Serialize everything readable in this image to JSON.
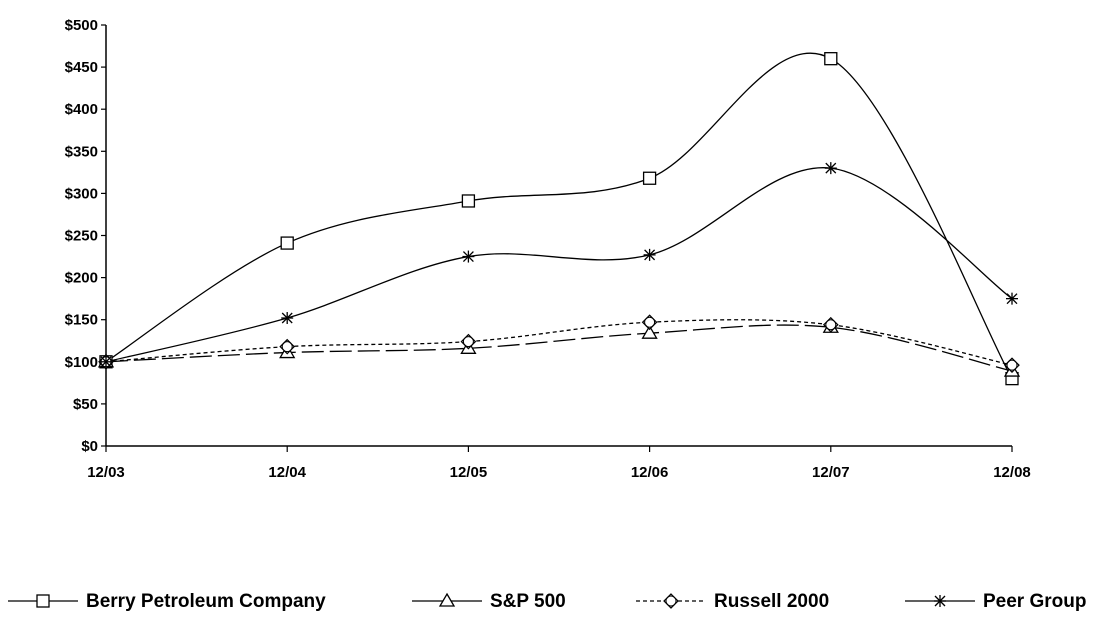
{
  "chart_data": {
    "type": "line",
    "title": "",
    "xlabel": "",
    "ylabel": "",
    "categories": [
      "12/03",
      "12/04",
      "12/05",
      "12/06",
      "12/07",
      "12/08"
    ],
    "ylim": [
      0,
      500
    ],
    "ytick_values": [
      0,
      50,
      100,
      150,
      200,
      250,
      300,
      350,
      400,
      450,
      500
    ],
    "ytick_labels": [
      "$0",
      "$50",
      "$100",
      "$150",
      "$200",
      "$250",
      "$300",
      "$350",
      "$400",
      "$450",
      "$500"
    ],
    "grid": false,
    "legend_position": "bottom",
    "series": [
      {
        "name": "Berry Petroleum Company",
        "values": [
          100,
          241,
          291,
          318,
          460,
          80
        ],
        "marker": "square",
        "line_style": "solid",
        "color": "#000000"
      },
      {
        "name": "S&P 500",
        "values": [
          100,
          111,
          116,
          134,
          141,
          89
        ],
        "marker": "triangle",
        "line_style": "long-dash",
        "color": "#000000"
      },
      {
        "name": "Russell 2000",
        "values": [
          100,
          118,
          124,
          147,
          144,
          96
        ],
        "marker": "diamond",
        "line_style": "short-dash",
        "color": "#000000"
      },
      {
        "name": "Peer Group",
        "values": [
          100,
          152,
          225,
          227,
          330,
          175
        ],
        "marker": "asterisk",
        "line_style": "solid",
        "color": "#000000"
      }
    ]
  }
}
